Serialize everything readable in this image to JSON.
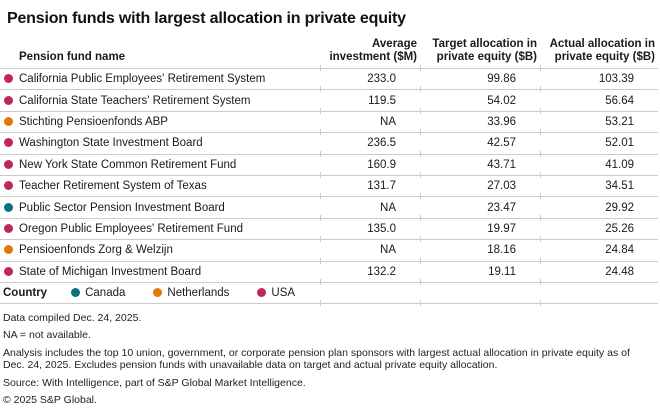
{
  "title": "Pension funds with largest allocation in private equity",
  "chart_data": {
    "type": "table",
    "title": "Pension funds with largest allocation in private equity",
    "columns": [
      "Pension fund name",
      "Average\ninvestment ($M)",
      "Target allocation in\nprivate equity ($B)",
      "Actual allocation in\nprivate equity ($B)"
    ],
    "country_colors": {
      "Canada": "#0F6F7E",
      "Netherlands": "#E27806",
      "USA": "#BF265B"
    },
    "legend": {
      "label": "Country",
      "items": [
        {
          "label": "Canada",
          "color": "#0F6F7E"
        },
        {
          "label": "Netherlands",
          "color": "#E27806"
        },
        {
          "label": "USA",
          "color": "#BF265B"
        }
      ]
    },
    "rows": [
      {
        "name": "California Public Employees' Retirement System",
        "country": "USA",
        "avg_investment": "233.0",
        "target_allocation": "99.86",
        "actual_allocation": "103.39"
      },
      {
        "name": "California State Teachers' Retirement System",
        "country": "USA",
        "avg_investment": "119.5",
        "target_allocation": "54.02",
        "actual_allocation": "56.64"
      },
      {
        "name": "Stichting Pensioenfonds ABP",
        "country": "Netherlands",
        "avg_investment": "NA",
        "target_allocation": "33.96",
        "actual_allocation": "53.21"
      },
      {
        "name": "Washington State Investment Board",
        "country": "USA",
        "avg_investment": "236.5",
        "target_allocation": "42.57",
        "actual_allocation": "52.01"
      },
      {
        "name": "New York State Common Retirement Fund",
        "country": "USA",
        "avg_investment": "160.9",
        "target_allocation": "43.71",
        "actual_allocation": "41.09"
      },
      {
        "name": "Teacher Retirement System of Texas",
        "country": "USA",
        "avg_investment": "131.7",
        "target_allocation": "27.03",
        "actual_allocation": "34.51"
      },
      {
        "name": "Public Sector Pension Investment Board",
        "country": "Canada",
        "avg_investment": "NA",
        "target_allocation": "23.47",
        "actual_allocation": "29.92"
      },
      {
        "name": "Oregon Public Employees' Retirement Fund",
        "country": "USA",
        "avg_investment": "135.0",
        "target_allocation": "19.97",
        "actual_allocation": "25.26"
      },
      {
        "name": "Pensioenfonds Zorg & Welzijn",
        "country": "Netherlands",
        "avg_investment": "NA",
        "target_allocation": "18.16",
        "actual_allocation": "24.84"
      },
      {
        "name": "State of Michigan Investment Board",
        "country": "USA",
        "avg_investment": "132.2",
        "target_allocation": "19.11",
        "actual_allocation": "24.48"
      }
    ]
  },
  "footer": {
    "lines": [
      "Data compiled Dec. 24, 2025.",
      "NA = not available.",
      "Analysis includes the top 10 union, government, or corporate pension plan sponsors with largest actual allocation in private equity as of Dec. 24, 2025. Excludes pension funds with unavailable data on target and actual private equity allocation.",
      "Source: With Intelligence, part of S&P Global Market Intelligence.",
      "© 2025 S&P Global."
    ]
  },
  "colors": {
    "separator": "#CBCBCB",
    "text": "#1A1A1A"
  }
}
